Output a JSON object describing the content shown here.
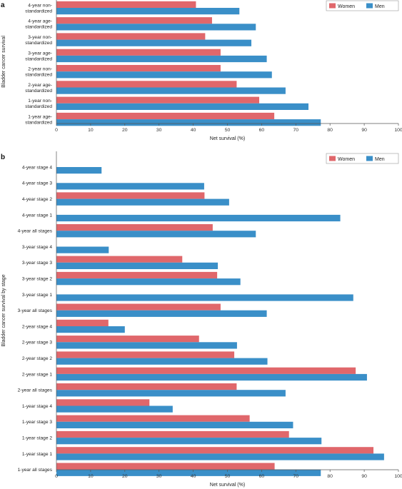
{
  "chart_data": [
    {
      "panel": "a",
      "type": "bar",
      "orientation": "horizontal",
      "categories": [
        "4-year non-standardized",
        "4-year age-standardized",
        "3-year non-standardized",
        "3-year age-standardized",
        "2-year non-standardized",
        "2-year age-standardized",
        "1-year non-standardized",
        "1-year age-standardized"
      ],
      "series": [
        {
          "name": "Women",
          "color": "#e0676b",
          "values": [
            40.8,
            45.5,
            43.5,
            48.0,
            48.0,
            52.7,
            59.3,
            63.7
          ]
        },
        {
          "name": "Men",
          "color": "#3a8fc8",
          "values": [
            53.5,
            58.3,
            57.0,
            61.5,
            63.0,
            67.0,
            73.7,
            77.3
          ]
        }
      ],
      "xlabel": "Net survival (%)",
      "ylabel": "Bladder cancer survival",
      "xlim": [
        0,
        100
      ],
      "xticks": [
        0,
        10,
        20,
        30,
        40,
        50,
        60,
        70,
        80,
        90,
        100
      ],
      "legend": "top-right",
      "grid": false
    },
    {
      "panel": "b",
      "type": "bar",
      "orientation": "horizontal",
      "categories": [
        "4-year stage 4",
        "4-year stage 3",
        "4-year stage 2",
        "4-year stage 1",
        "4-year all stages",
        "3-year stage 4",
        "3-year stage 3",
        "3-year stage 2",
        "3-year stage 1",
        "3-year all stages",
        "2-year stage 4",
        "2-year stage 3",
        "2-year stage 2",
        "2-year stage 1",
        "2-year all stages",
        "1-year stage 4",
        "1-year stage 3",
        "1-year stage 2",
        "1-year stage 1",
        "1-year all stages"
      ],
      "series": [
        {
          "name": "Women",
          "color": "#e0676b",
          "values": [
            null,
            null,
            43.3,
            null,
            45.7,
            null,
            36.8,
            47.0,
            null,
            48.0,
            15.2,
            41.7,
            52.0,
            87.5,
            52.7,
            27.2,
            56.5,
            68.0,
            92.7,
            63.8
          ]
        },
        {
          "name": "Men",
          "color": "#3a8fc8",
          "values": [
            13.2,
            43.2,
            50.5,
            83.0,
            58.3,
            15.3,
            47.2,
            53.8,
            86.8,
            61.5,
            20.0,
            52.8,
            61.7,
            90.8,
            67.0,
            34.0,
            69.2,
            77.5,
            95.8,
            77.3
          ]
        }
      ],
      "xlabel": "Net survival  (%)",
      "ylabel": "Bladder cancer survival by stage",
      "xlim": [
        0,
        100
      ],
      "xticks": [
        0,
        10,
        20,
        30,
        40,
        50,
        60,
        70,
        80,
        90,
        100
      ],
      "legend": "top-right",
      "grid": false
    }
  ]
}
